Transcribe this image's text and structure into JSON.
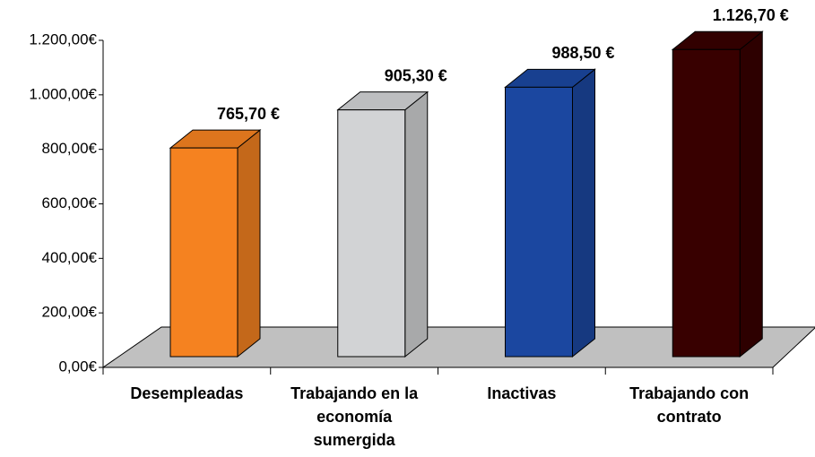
{
  "chart_data": {
    "type": "bar3d",
    "categories": [
      "Desempleadas",
      "Trabajando en la economía sumergida",
      "Inactivas",
      "Trabajando con contrato"
    ],
    "values": [
      765.7,
      905.3,
      988.5,
      1126.7
    ],
    "value_labels": [
      "765,70 €",
      "905,30 €",
      "988,50 €",
      "1.126,70 €"
    ],
    "colors": [
      "#f58220",
      "#d2d3d5",
      "#1b47a0",
      "#380000"
    ],
    "ylim": [
      0,
      1200
    ],
    "yticks": [
      {
        "value": 0,
        "label": "0,00€"
      },
      {
        "value": 200,
        "label": "200,00€"
      },
      {
        "value": 400,
        "label": "400,00€"
      },
      {
        "value": 600,
        "label": "600,00€"
      },
      {
        "value": 800,
        "label": "800,00€"
      },
      {
        "value": 1000,
        "label": "1.000,00€"
      },
      {
        "value": 1200,
        "label": "1.200,00€"
      }
    ]
  }
}
